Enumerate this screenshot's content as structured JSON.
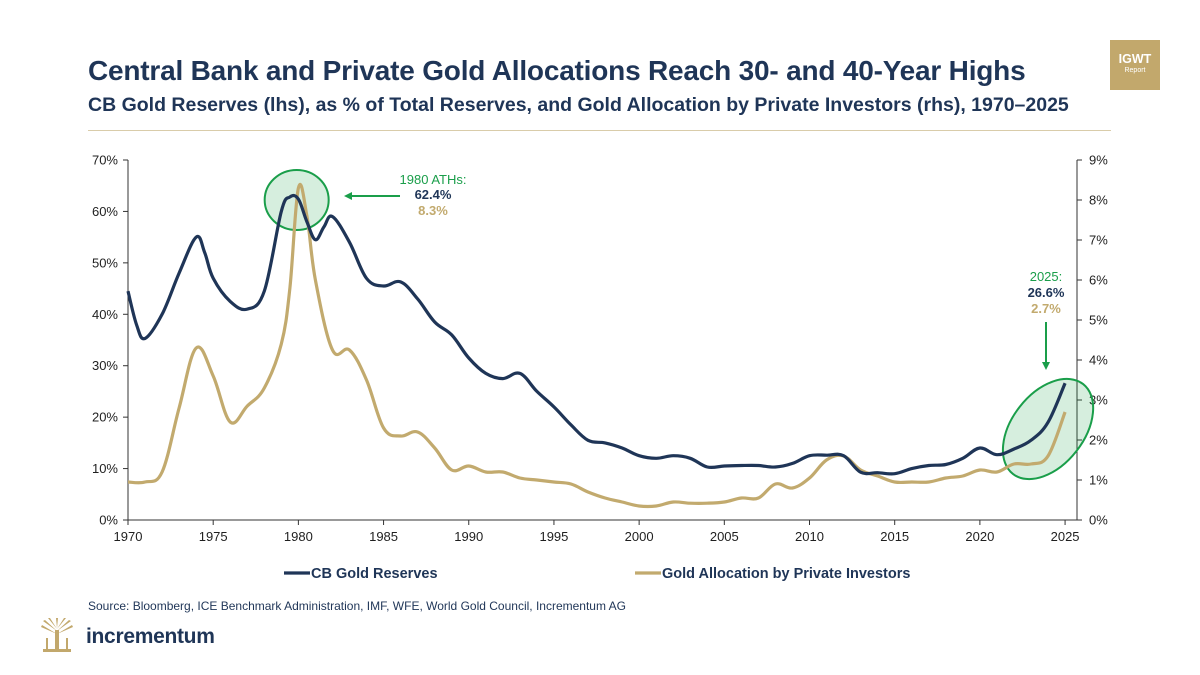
{
  "header": {
    "title": "Central Bank and Private Gold Allocations Reach 30- and 40-Year Highs",
    "subtitle": "CB Gold Reserves (lhs), as % of Total Reserves, and Gold Allocation by Private Investors (rhs), 1970–2025"
  },
  "badge": {
    "line1": "IGWT",
    "line2": "Report"
  },
  "footer": {
    "source": "Source: Bloomberg, ICE Benchmark Administration, IMF, WFE, World Gold Council, Incrementum AG",
    "brand": "incrementum"
  },
  "colors": {
    "cb": "#1f3557",
    "private": "#c2aa6e",
    "accent": "#1a9e4a",
    "gold": "#c2a86c"
  },
  "chart_data": {
    "type": "line",
    "x_ticks": [
      1970,
      1975,
      1980,
      1985,
      1990,
      1995,
      2000,
      2005,
      2010,
      2015,
      2020,
      2025
    ],
    "x_range": [
      1970,
      2025.7
    ],
    "y_left": {
      "ticks": [
        "0%",
        "10%",
        "20%",
        "30%",
        "40%",
        "50%",
        "60%",
        "70%"
      ],
      "range": [
        0,
        70
      ]
    },
    "y_right": {
      "ticks": [
        "0%",
        "1%",
        "2%",
        "3%",
        "4%",
        "5%",
        "6%",
        "7%",
        "8%",
        "9%"
      ],
      "range": [
        0,
        9
      ]
    },
    "series": [
      {
        "name": "CB Gold Reserves",
        "axis": "left",
        "x": [
          1970,
          1970.5,
          1971,
          1972,
          1973,
          1974,
          1974.5,
          1975,
          1976,
          1977,
          1978,
          1979,
          1979.5,
          1980,
          1980.5,
          1981,
          1981.5,
          1982,
          1983,
          1984,
          1985,
          1986,
          1987,
          1988,
          1989,
          1990,
          1991,
          1992,
          1993,
          1994,
          1995,
          1996,
          1997,
          1998,
          1999,
          2000,
          2001,
          2002,
          2003,
          2004,
          2005,
          2006,
          2007,
          2008,
          2009,
          2010,
          2011,
          2012,
          2013,
          2014,
          2015,
          2016,
          2017,
          2018,
          2019,
          2020,
          2021,
          2022,
          2023,
          2024,
          2025
        ],
        "y": [
          44.5,
          38,
          35.3,
          40,
          48,
          55,
          52,
          47,
          42.5,
          41,
          44.5,
          60,
          62.8,
          62.4,
          58,
          54.5,
          57,
          59,
          54,
          47,
          45.5,
          46.3,
          43,
          38.5,
          36,
          31.5,
          28.5,
          27.5,
          28.5,
          25,
          22,
          18.5,
          15.5,
          15,
          14,
          12.5,
          12,
          12.5,
          12,
          10.3,
          10.5,
          10.6,
          10.6,
          10.3,
          11,
          12.5,
          12.6,
          12.5,
          9.3,
          9.2,
          9,
          10,
          10.6,
          10.8,
          12,
          14,
          12.7,
          13.8,
          15.5,
          19,
          26.6
        ]
      },
      {
        "name": "Gold Allocation by Private Investors",
        "axis": "right",
        "x": [
          1970,
          1971,
          1972,
          1973,
          1974,
          1975,
          1976,
          1977,
          1978,
          1979,
          1979.5,
          1980,
          1980.5,
          1981,
          1982,
          1983,
          1984,
          1985,
          1986,
          1987,
          1988,
          1989,
          1990,
          1991,
          1992,
          1993,
          1994,
          1995,
          1996,
          1997,
          1998,
          1999,
          2000,
          2001,
          2002,
          2003,
          2004,
          2005,
          2006,
          2007,
          2008,
          2009,
          2010,
          2011,
          2012,
          2013,
          2014,
          2015,
          2016,
          2017,
          2018,
          2019,
          2020,
          2021,
          2022,
          2023,
          2024,
          2025
        ],
        "y": [
          0.95,
          0.95,
          1.2,
          2.8,
          4.3,
          3.6,
          2.45,
          2.85,
          3.3,
          4.4,
          5.8,
          8.3,
          7.6,
          6,
          4.25,
          4.25,
          3.5,
          2.3,
          2.1,
          2.2,
          1.8,
          1.25,
          1.35,
          1.2,
          1.2,
          1.05,
          1,
          0.95,
          0.9,
          0.7,
          0.55,
          0.45,
          0.35,
          0.35,
          0.45,
          0.42,
          0.42,
          0.45,
          0.55,
          0.55,
          0.9,
          0.8,
          1.05,
          1.5,
          1.6,
          1.25,
          1.1,
          0.95,
          0.95,
          0.95,
          1.05,
          1.1,
          1.25,
          1.2,
          1.4,
          1.4,
          1.6,
          2.7
        ]
      }
    ],
    "annotations": [
      {
        "label": "1980 ATHs:",
        "cb_value": "62.4%",
        "private_value": "8.3%"
      },
      {
        "label": "2025:",
        "cb_value": "26.6%",
        "private_value": "2.7%"
      }
    ],
    "legend": {
      "position": "bottom",
      "items": [
        "CB Gold Reserves",
        "Gold Allocation by Private Investors"
      ]
    },
    "grid": false
  }
}
